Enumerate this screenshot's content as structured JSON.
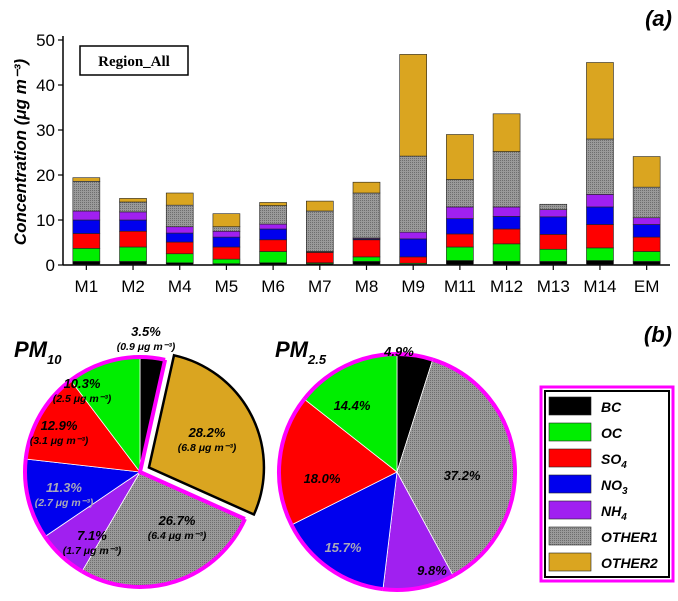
{
  "colors": {
    "BC": "#000000",
    "OC": "#00ee00",
    "SO4": "#ff0000",
    "NO3": "#0000ee",
    "NH4": "#a020f0",
    "OTHER1": "#909090",
    "OTHER2": "#daa520",
    "highlight": "#ff00ff"
  },
  "panel_a": {
    "label": "(a)",
    "region_label": "Region_All"
  },
  "panel_b": {
    "label": "(b)"
  },
  "legend": {
    "items": [
      {
        "key": "BC",
        "label": "BC",
        "sub": ""
      },
      {
        "key": "OC",
        "label": "OC",
        "sub": ""
      },
      {
        "key": "SO4",
        "label": "SO",
        "sub": "4"
      },
      {
        "key": "NO3",
        "label": "NO",
        "sub": "3"
      },
      {
        "key": "NH4",
        "label": "NH",
        "sub": "4"
      },
      {
        "key": "OTHER1",
        "label": "OTHER1",
        "sub": ""
      },
      {
        "key": "OTHER2",
        "label": "OTHER2",
        "sub": ""
      }
    ]
  },
  "chart_data": [
    {
      "type": "bar",
      "stacked": true,
      "title": "",
      "ylabel": "Concentration (μg m⁻³)",
      "ylim": [
        0,
        50
      ],
      "yticks": [
        0,
        10,
        20,
        30,
        40,
        50
      ],
      "categories": [
        "M1",
        "M2",
        "M4",
        "M5",
        "M6",
        "M7",
        "M8",
        "M9",
        "M11",
        "M12",
        "M13",
        "M14",
        "EM"
      ],
      "series": [
        {
          "name": "BC",
          "values": [
            0.8,
            0.8,
            0.5,
            0.3,
            0.5,
            0.3,
            0.8,
            0.2,
            1.0,
            0.8,
            0.8,
            1.0,
            0.8
          ]
        },
        {
          "name": "OC",
          "values": [
            2.9,
            3.2,
            2.0,
            1.0,
            2.5,
            0.2,
            1.0,
            0.2,
            3.0,
            3.9,
            2.7,
            2.8,
            2.2
          ]
        },
        {
          "name": "SO4",
          "values": [
            3.3,
            3.5,
            2.6,
            2.7,
            2.6,
            2.3,
            3.8,
            1.4,
            2.9,
            3.3,
            3.3,
            5.2,
            3.2
          ]
        },
        {
          "name": "NO3",
          "values": [
            3.0,
            2.5,
            2.0,
            2.2,
            2.4,
            0.1,
            0.2,
            4.0,
            3.4,
            2.8,
            3.9,
            3.9,
            2.8
          ]
        },
        {
          "name": "NH4",
          "values": [
            2.0,
            1.8,
            1.4,
            1.3,
            1.1,
            0.1,
            0.2,
            1.5,
            2.6,
            2.1,
            1.6,
            2.8,
            1.5
          ]
        },
        {
          "name": "OTHER1",
          "values": [
            6.6,
            2.2,
            4.8,
            1.0,
            4.1,
            9.0,
            10.0,
            16.9,
            6.1,
            12.3,
            1.2,
            12.3,
            6.8
          ]
        },
        {
          "name": "OTHER2",
          "values": [
            0.8,
            0.8,
            2.7,
            2.9,
            0.7,
            2.2,
            2.4,
            22.6,
            10.0,
            8.4,
            0.0,
            17.0,
            6.8
          ]
        }
      ]
    },
    {
      "type": "pie",
      "title": "PM10",
      "title_main": "PM",
      "title_sub": "10",
      "labels": [
        "BC",
        "OTHER2",
        "OTHER1",
        "NH4",
        "NO3",
        "SO4",
        "OC"
      ],
      "values": [
        3.5,
        28.2,
        26.7,
        7.1,
        11.3,
        12.9,
        10.3
      ],
      "exploded": [
        "OTHER2"
      ],
      "annotations": [
        {
          "pct": "3.5%",
          "abs": "(0.9 μg m⁻³)"
        },
        {
          "pct": "28.2%",
          "abs": "(6.8 μg m⁻³)"
        },
        {
          "pct": "26.7%",
          "abs": "(6.4 μg m⁻³)"
        },
        {
          "pct": "7.1%",
          "abs": "(1.7 μg m⁻³)"
        },
        {
          "pct": "11.3%",
          "abs": "(2.7 μg m⁻³)"
        },
        {
          "pct": "12.9%",
          "abs": "(3.1 μg m⁻³)"
        },
        {
          "pct": "10.3%",
          "abs": "(2.5 μg m⁻³)"
        }
      ]
    },
    {
      "type": "pie",
      "title": "PM2.5",
      "title_main": "PM",
      "title_sub": "2.5",
      "labels": [
        "BC",
        "OTHER1",
        "NH4",
        "NO3",
        "SO4",
        "OC"
      ],
      "values": [
        4.9,
        37.2,
        9.8,
        15.7,
        18.0,
        14.4
      ],
      "annotations": [
        {
          "pct": "4.9%"
        },
        {
          "pct": "37.2%"
        },
        {
          "pct": "9.8%"
        },
        {
          "pct": "15.7%"
        },
        {
          "pct": "18.0%"
        },
        {
          "pct": "14.4%"
        }
      ]
    }
  ]
}
